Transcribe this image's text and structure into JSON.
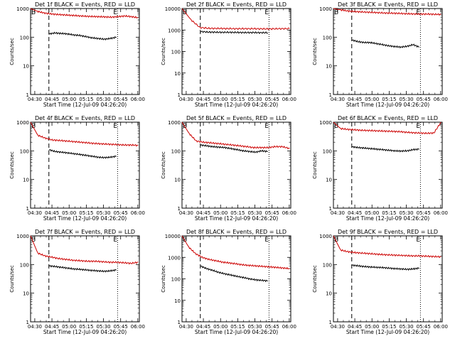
{
  "chart_data": [
    {
      "type": "line",
      "title": "Det 1f BLACK = Events, RED = LLD",
      "xlabel": "Start Time (12-Jul-09 04:26:20)",
      "ylabel": "Counts/sec",
      "yscale": "log",
      "ylim": [
        1,
        1000
      ],
      "yticks": [
        "1",
        "10",
        "100",
        "1000"
      ],
      "xticks": [
        "04:30",
        "04:45",
        "05:00",
        "05:15",
        "05:30",
        "05:45",
        "06:00"
      ],
      "xlim_minutes": [
        0,
        95
      ],
      "markers": [
        "B",
        "E"
      ],
      "vlines": [
        {
          "t": 16,
          "style": "dash"
        },
        {
          "t": 76,
          "style": "dot"
        }
      ],
      "series": [
        {
          "color": "#cc0000",
          "start": 0,
          "end": 94,
          "values": [
            1000,
            800,
            700,
            650,
            620,
            600,
            580,
            560,
            540,
            530,
            520,
            510,
            500,
            520,
            550,
            520,
            480
          ]
        },
        {
          "color": "#000000",
          "start": 16,
          "end": 75,
          "values": [
            130,
            140,
            135,
            130,
            120,
            115,
            105,
            95,
            90,
            85,
            90,
            100
          ]
        }
      ]
    },
    {
      "type": "line",
      "title": "Det 2f BLACK = Events, RED = LLD",
      "xlabel": "Start Time (12-Jul-09 04:26:20)",
      "ylabel": "Counts/sec",
      "yscale": "log",
      "ylim": [
        1,
        10000
      ],
      "yticks": [
        "1",
        "10",
        "100",
        "1000",
        "10000"
      ],
      "xticks": [
        "04:30",
        "04:45",
        "05:00",
        "05:15",
        "05:30",
        "05:45",
        "06:00"
      ],
      "xlim_minutes": [
        0,
        95
      ],
      "markers": [
        "B",
        "E"
      ],
      "vlines": [
        {
          "t": 16,
          "style": "dash"
        },
        {
          "t": 76,
          "style": "dot"
        }
      ],
      "series": [
        {
          "color": "#cc0000",
          "start": 0,
          "end": 94,
          "values": [
            10000,
            3000,
            1300,
            1200,
            1180,
            1160,
            1150,
            1150,
            1150,
            1130,
            1130,
            1150,
            1150
          ]
        },
        {
          "color": "#000000",
          "start": 16,
          "end": 75,
          "values": [
            850,
            800,
            790,
            780,
            780,
            770,
            760,
            760,
            750,
            750
          ]
        }
      ]
    },
    {
      "type": "line",
      "title": "Det 3f BLACK = Events, RED = LLD",
      "xlabel": "Start Time (12-Jul-09 04:26:20)",
      "ylabel": "Counts/sec",
      "yscale": "log",
      "ylim": [
        1,
        1000
      ],
      "yticks": [
        "1",
        "10",
        "100",
        "1000"
      ],
      "xticks": [
        "04:30",
        "04:45",
        "05:00",
        "05:15",
        "05:30",
        "05:45",
        "06:00"
      ],
      "xlim_minutes": [
        0,
        95
      ],
      "markers": [
        "B",
        "E"
      ],
      "vlines": [
        {
          "t": 16,
          "style": "dash"
        },
        {
          "t": 76,
          "style": "dot"
        }
      ],
      "series": [
        {
          "color": "#cc0000",
          "start": 0,
          "end": 94,
          "values": [
            1000,
            900,
            820,
            780,
            760,
            740,
            720,
            700,
            690,
            680,
            660,
            650,
            640,
            640,
            630,
            620
          ]
        },
        {
          "color": "#000000",
          "start": 16,
          "end": 75,
          "values": [
            80,
            70,
            65,
            65,
            60,
            55,
            50,
            47,
            45,
            48,
            55,
            45
          ]
        }
      ]
    },
    {
      "type": "line",
      "title": "Det 4f BLACK = Events, RED = LLD",
      "xlabel": "Start Time (12-Jul-09 04:26:20)",
      "ylabel": "Counts/sec",
      "yscale": "log",
      "ylim": [
        1,
        1000
      ],
      "yticks": [
        "1",
        "10",
        "100",
        "1000"
      ],
      "xticks": [
        "04:30",
        "04:45",
        "05:00",
        "05:15",
        "05:30",
        "05:45",
        "06:00"
      ],
      "xlim_minutes": [
        0,
        95
      ],
      "markers": [
        "B",
        "E"
      ],
      "vlines": [
        {
          "t": 16,
          "style": "dash"
        },
        {
          "t": 76,
          "style": "dot"
        }
      ],
      "series": [
        {
          "color": "#cc0000",
          "start": 0,
          "end": 94,
          "values": [
            1000,
            350,
            280,
            240,
            230,
            220,
            210,
            200,
            190,
            180,
            175,
            170,
            165,
            160,
            160,
            155
          ]
        },
        {
          "color": "#000000",
          "start": 16,
          "end": 75,
          "values": [
            110,
            95,
            90,
            85,
            80,
            75,
            70,
            65,
            60,
            58,
            60,
            65
          ]
        }
      ]
    },
    {
      "type": "line",
      "title": "Det 5f BLACK = Events, RED = LLD",
      "xlabel": "Start Time (12-Jul-09 04:26:20)",
      "ylabel": "Counts/sec",
      "yscale": "log",
      "ylim": [
        1,
        1000
      ],
      "yticks": [
        "1",
        "10",
        "100",
        "1000"
      ],
      "xticks": [
        "04:30",
        "04:45",
        "05:00",
        "05:15",
        "05:30",
        "05:45",
        "06:00"
      ],
      "xlim_minutes": [
        0,
        95
      ],
      "markers": [
        "B",
        "E"
      ],
      "vlines": [
        {
          "t": 16,
          "style": "dash"
        },
        {
          "t": 76,
          "style": "dot"
        }
      ],
      "series": [
        {
          "color": "#cc0000",
          "start": 0,
          "end": 94,
          "values": [
            1000,
            400,
            220,
            200,
            190,
            180,
            170,
            160,
            150,
            140,
            130,
            130,
            130,
            140,
            140,
            120
          ]
        },
        {
          "color": "#000000",
          "start": 16,
          "end": 75,
          "values": [
            160,
            150,
            140,
            135,
            130,
            120,
            110,
            100,
            95,
            90,
            100,
            95
          ]
        }
      ]
    },
    {
      "type": "line",
      "title": "Det 6f BLACK = Events, RED = LLD",
      "xlabel": "Start Time (12-Jul-09 04:26:20)",
      "ylabel": "Counts/sec",
      "yscale": "log",
      "ylim": [
        1,
        1000
      ],
      "yticks": [
        "1",
        "10",
        "100",
        "1000"
      ],
      "xticks": [
        "04:30",
        "04:45",
        "05:00",
        "05:15",
        "05:30",
        "05:45",
        "06:00"
      ],
      "xlim_minutes": [
        0,
        95
      ],
      "markers": [
        "B",
        "E"
      ],
      "vlines": [
        {
          "t": 16,
          "style": "dash"
        },
        {
          "t": 76,
          "style": "dot"
        }
      ],
      "series": [
        {
          "color": "#cc0000",
          "start": 0,
          "end": 94,
          "values": [
            1000,
            600,
            560,
            540,
            520,
            510,
            500,
            490,
            480,
            470,
            450,
            430,
            420,
            410,
            420,
            1000
          ]
        },
        {
          "color": "#000000",
          "start": 16,
          "end": 75,
          "values": [
            140,
            130,
            125,
            120,
            115,
            110,
            105,
            100,
            98,
            100,
            110,
            115
          ]
        }
      ]
    },
    {
      "type": "line",
      "title": "Det 7f BLACK = Events, RED = LLD",
      "xlabel": "Start Time (12-Jul-09 04:26:20)",
      "ylabel": "Counts/sec",
      "yscale": "log",
      "ylim": [
        1,
        1000
      ],
      "yticks": [
        "1",
        "10",
        "100",
        "1000"
      ],
      "xticks": [
        "04:30",
        "04:45",
        "05:00",
        "05:15",
        "05:30",
        "05:45",
        "06:00"
      ],
      "xlim_minutes": [
        0,
        95
      ],
      "markers": [
        "B",
        "E"
      ],
      "vlines": [
        {
          "t": 16,
          "style": "dash"
        },
        {
          "t": 76,
          "style": "dot"
        }
      ],
      "series": [
        {
          "color": "#cc0000",
          "start": 0,
          "end": 94,
          "values": [
            1000,
            250,
            200,
            180,
            160,
            150,
            140,
            135,
            130,
            130,
            125,
            120,
            120,
            115,
            110,
            120
          ]
        },
        {
          "color": "#000000",
          "start": 16,
          "end": 75,
          "values": [
            90,
            85,
            80,
            75,
            70,
            68,
            65,
            62,
            60,
            58,
            60,
            65
          ]
        }
      ]
    },
    {
      "type": "line",
      "title": "Det 8f BLACK = Events, RED = LLD",
      "xlabel": "Start Time (12-Jul-09 04:26:20)",
      "ylabel": "Counts/sec",
      "yscale": "log",
      "ylim": [
        1,
        10000
      ],
      "yticks": [
        "1",
        "10",
        "100",
        "1000",
        "10000"
      ],
      "xticks": [
        "04:30",
        "04:45",
        "05:00",
        "05:15",
        "05:30",
        "05:45",
        "06:00"
      ],
      "xlim_minutes": [
        0,
        95
      ],
      "markers": [
        "B",
        "E"
      ],
      "vlines": [
        {
          "t": 16,
          "style": "dash"
        },
        {
          "t": 76,
          "style": "dot"
        }
      ],
      "series": [
        {
          "color": "#cc0000",
          "start": 0,
          "end": 94,
          "values": [
            10000,
            3000,
            1500,
            1000,
            800,
            700,
            600,
            550,
            500,
            450,
            420,
            400,
            380,
            360,
            340,
            320,
            300
          ]
        },
        {
          "color": "#000000",
          "start": 16,
          "end": 75,
          "values": [
            400,
            300,
            250,
            200,
            170,
            150,
            130,
            115,
            100,
            90,
            85,
            80
          ]
        }
      ]
    },
    {
      "type": "line",
      "title": "Det 9f BLACK = Events, RED = LLD",
      "xlabel": "Start Time (12-Jul-09 04:26:20)",
      "ylabel": "Counts/sec",
      "yscale": "log",
      "ylim": [
        1,
        1000
      ],
      "yticks": [
        "1",
        "10",
        "100",
        "1000"
      ],
      "xticks": [
        "04:30",
        "04:45",
        "05:00",
        "05:15",
        "05:30",
        "05:45",
        "06:00"
      ],
      "xlim_minutes": [
        0,
        95
      ],
      "markers": [
        "B",
        "E"
      ],
      "vlines": [
        {
          "t": 16,
          "style": "dash"
        },
        {
          "t": 76,
          "style": "dot"
        }
      ],
      "series": [
        {
          "color": "#cc0000",
          "start": 0,
          "end": 94,
          "values": [
            1000,
            320,
            280,
            260,
            250,
            240,
            230,
            220,
            215,
            210,
            205,
            200,
            200,
            195,
            190,
            185
          ]
        },
        {
          "color": "#000000",
          "start": 16,
          "end": 75,
          "values": [
            95,
            90,
            85,
            82,
            80,
            78,
            75,
            72,
            70,
            68,
            70,
            75
          ]
        }
      ]
    }
  ]
}
